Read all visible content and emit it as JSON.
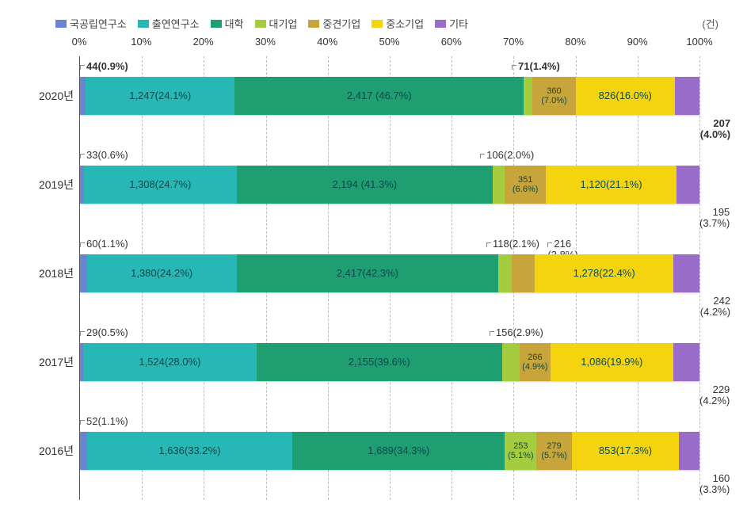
{
  "chart": {
    "type": "stacked-bar-horizontal",
    "unit_label": "(건)",
    "legend": [
      {
        "label": "국공립연구소",
        "color": "#6a84d1"
      },
      {
        "label": "출연연구소",
        "color": "#27b7b5"
      },
      {
        "label": "대학",
        "color": "#1f9e72"
      },
      {
        "label": "대기업",
        "color": "#a5cc3e"
      },
      {
        "label": "중견기업",
        "color": "#c7a53b"
      },
      {
        "label": "중소기업",
        "color": "#f4d40e"
      },
      {
        "label": "기타",
        "color": "#9a6cc9"
      }
    ],
    "axis": {
      "min": 0,
      "max": 100,
      "step": 10,
      "suffix": "%",
      "gridline_color": "#bdbdbd"
    },
    "rows": [
      {
        "label": "2020년",
        "segments": [
          {
            "key": "국공립연구소",
            "pct": 0.9,
            "callout_top": "44(0.9%)",
            "callout_bold": true
          },
          {
            "key": "출연연구소",
            "pct": 24.1,
            "text": "1,247(24.1%)"
          },
          {
            "key": "대학",
            "pct": 46.7,
            "text": "2,417 (46.7%)"
          },
          {
            "key": "대기업",
            "pct": 1.4,
            "callout_top": "71(1.4%)",
            "callout_bold": true,
            "callout_align": "right"
          },
          {
            "key": "중견기업",
            "pct": 7.0,
            "text": "360\n(7.0%)"
          },
          {
            "key": "중소기업",
            "pct": 16.0,
            "text": "826(16.0%)"
          },
          {
            "key": "기타",
            "pct": 4.0,
            "callout_below": "207\n(4.0%)",
            "callout_bold": true
          }
        ]
      },
      {
        "label": "2019년",
        "segments": [
          {
            "key": "국공립연구소",
            "pct": 0.6,
            "callout_top": "33(0.6%)"
          },
          {
            "key": "출연연구소",
            "pct": 24.7,
            "text": "1,308(24.7%)"
          },
          {
            "key": "대학",
            "pct": 41.3,
            "text": "2,194 (41.3%)"
          },
          {
            "key": "대기업",
            "pct": 2.0,
            "callout_top": "106(2.0%)",
            "callout_align": "right"
          },
          {
            "key": "중견기업",
            "pct": 6.6,
            "text": "351\n(6.6%)"
          },
          {
            "key": "중소기업",
            "pct": 21.1,
            "text": "1,120(21.1%)"
          },
          {
            "key": "기타",
            "pct": 3.7,
            "callout_below": "195\n(3.7%)"
          }
        ]
      },
      {
        "label": "2018년",
        "segments": [
          {
            "key": "국공립연구소",
            "pct": 1.1,
            "callout_top": "60(1.1%)"
          },
          {
            "key": "출연연구소",
            "pct": 24.2,
            "text": "1,380(24.2%)"
          },
          {
            "key": "대학",
            "pct": 42.3,
            "text": "2,417(42.3%)"
          },
          {
            "key": "대기업",
            "pct": 2.1,
            "callout_top": "118(2.1%)",
            "callout_align": "right"
          },
          {
            "key": "중견기업",
            "pct": 3.8,
            "callout_top": "216\n(3.8%)",
            "callout_align": "far-right"
          },
          {
            "key": "중소기업",
            "pct": 22.4,
            "text": "1,278(22.4%)"
          },
          {
            "key": "기타",
            "pct": 4.2,
            "callout_below": "242\n(4.2%)"
          }
        ]
      },
      {
        "label": "2017년",
        "segments": [
          {
            "key": "국공립연구소",
            "pct": 0.5,
            "callout_top": "29(0.5%)"
          },
          {
            "key": "출연연구소",
            "pct": 28.0,
            "text": "1,524(28.0%)"
          },
          {
            "key": "대학",
            "pct": 39.6,
            "text": "2,155(39.6%)"
          },
          {
            "key": "대기업",
            "pct": 2.9,
            "callout_top": "156(2.9%)",
            "callout_align": "right"
          },
          {
            "key": "중견기업",
            "pct": 4.9,
            "text": "266\n(4.9%)"
          },
          {
            "key": "중소기업",
            "pct": 19.9,
            "text": "1,086(19.9%)"
          },
          {
            "key": "기타",
            "pct": 4.2,
            "callout_below": "229\n(4.2%)"
          }
        ]
      },
      {
        "label": "2016년",
        "segments": [
          {
            "key": "국공립연구소",
            "pct": 1.1,
            "callout_top": "52(1.1%)"
          },
          {
            "key": "출연연구소",
            "pct": 33.2,
            "text": "1,636(33.2%)"
          },
          {
            "key": "대학",
            "pct": 34.3,
            "text": "1,689(34.3%)"
          },
          {
            "key": "대기업",
            "pct": 5.1,
            "text": "253\n(5.1%)"
          },
          {
            "key": "중견기업",
            "pct": 5.7,
            "text": "279\n(5.7%)"
          },
          {
            "key": "중소기업",
            "pct": 17.3,
            "text": "853(17.3%)"
          },
          {
            "key": "기타",
            "pct": 3.3,
            "callout_below": "160\n(3.3%)"
          }
        ]
      }
    ]
  }
}
